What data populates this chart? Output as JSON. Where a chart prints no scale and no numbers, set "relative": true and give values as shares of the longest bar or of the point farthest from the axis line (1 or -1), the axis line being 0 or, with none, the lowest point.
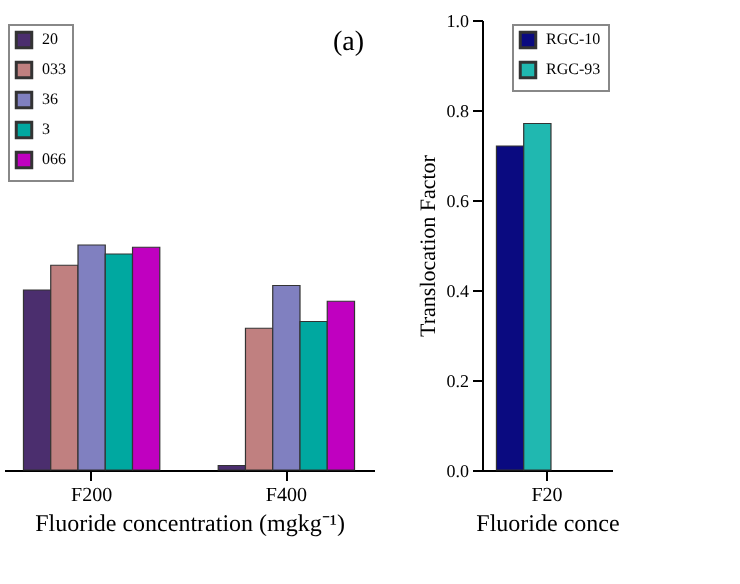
{
  "chart_data": [
    {
      "type": "bar",
      "relative": true,
      "categories": [
        "F200",
        "F400"
      ],
      "xlabel": "Fluoride concentration (mgkg⁻¹)",
      "legend": "top left",
      "annotations": [
        "(a)"
      ],
      "series": [
        {
          "name": "20",
          "color": "#4b2e6e",
          "values": [
            0.8,
            0.02
          ]
        },
        {
          "name": "033",
          "color": "#c08080",
          "values": [
            0.91,
            0.63
          ]
        },
        {
          "name": "36",
          "color": "#8080c0",
          "values": [
            1.0,
            0.82
          ]
        },
        {
          "name": "3",
          "color": "#00a8a0",
          "values": [
            0.96,
            0.66
          ]
        },
        {
          "name": "066",
          "color": "#c000c0",
          "values": [
            0.99,
            0.75
          ]
        }
      ]
    },
    {
      "type": "bar",
      "categories": [
        "F20"
      ],
      "xlabel": "Fluoride conce",
      "ylabel": "Translocation Factor",
      "ylim": [
        0,
        1.0
      ],
      "yticks": [
        {
          "value": 0,
          "label": "0.0"
        },
        0.2,
        0.4,
        0.6,
        0.8,
        {
          "value": 1,
          "label": "1.0"
        }
      ],
      "legend": "top right",
      "series": [
        {
          "name": "RGC-10",
          "color": "#0a0a80",
          "values": [
            0.72
          ]
        },
        {
          "name": "RGC-93",
          "color": "#20b8b0",
          "values": [
            0.77
          ]
        }
      ]
    }
  ]
}
